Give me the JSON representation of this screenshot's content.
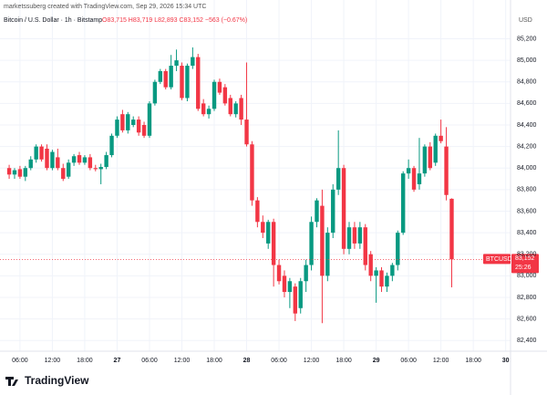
{
  "chart_data": {
    "type": "candlestick",
    "credit": "marketssuberg created with TradingView.com, Sep 29, 2026 15:34 UTC",
    "symbol": "Bitcoin / U.S. Dollar · 1h · Bitstamp",
    "ohlc": "O83,715 H83,719 L82,893 C83,152 −563 (−0.67%)",
    "currency": "USD",
    "brand": "TradingView",
    "last_label": {
      "name": "BTCUSD",
      "value_label": "83,152",
      "countdown": "25:26"
    },
    "up_color": "#089981",
    "down_color": "#f23645",
    "x": [
      4,
      5,
      6,
      7,
      8,
      9,
      10,
      11,
      12,
      13,
      14,
      15,
      16,
      17,
      18,
      19,
      20,
      21,
      22,
      23,
      24,
      25,
      26,
      27,
      28,
      29,
      30,
      31,
      32,
      33,
      34,
      35,
      36,
      37,
      38,
      39,
      40,
      41,
      42,
      43,
      44,
      45,
      46,
      47,
      48,
      49,
      50,
      51,
      52,
      53,
      54,
      55,
      56,
      57,
      58,
      59,
      60,
      61,
      62,
      63,
      64,
      65,
      66,
      67,
      68,
      69,
      70,
      71,
      72,
      73,
      74,
      75,
      76,
      77,
      78,
      79,
      80,
      81,
      82,
      83,
      84,
      85,
      86
    ],
    "open": [
      84000,
      83940,
      83990,
      83920,
      84000,
      84080,
      84200,
      84180,
      84000,
      84100,
      84000,
      83920,
      84050,
      84120,
      84050,
      84100,
      84000,
      83990,
      84010,
      84120,
      84300,
      84500,
      84350,
      84400,
      84450,
      84400,
      84300,
      84600,
      84800,
      84900,
      84750,
      84950,
      84950,
      84650,
      84950,
      85030,
      84600,
      84500,
      84550,
      84800,
      84750,
      84650,
      84500,
      84650,
      84450,
      84220,
      83700,
      83500,
      83300,
      83500,
      83100,
      83000,
      82850,
      82900,
      82700,
      82950,
      83100,
      83500,
      83650,
      83000,
      83400,
      83800,
      84000,
      83250,
      83450,
      83300,
      83450,
      83200,
      83000,
      83050,
      82900,
      83000,
      83100,
      83400,
      83950,
      84000,
      83850,
      83950,
      84200,
      84050,
      84300,
      84200,
      83715
    ],
    "high": [
      84030,
      84000,
      84020,
      84020,
      84110,
      84220,
      84220,
      84220,
      84170,
      84180,
      84040,
      84080,
      84130,
      84150,
      84120,
      84130,
      84030,
      84040,
      84150,
      84320,
      84480,
      84540,
      84520,
      84480,
      84480,
      84430,
      84620,
      84820,
      84920,
      84920,
      85050,
      85100,
      84980,
      84970,
      85120,
      85060,
      84640,
      84580,
      84820,
      84830,
      84780,
      84680,
      84620,
      84680,
      84980,
      84250,
      83730,
      83560,
      83520,
      83530,
      83150,
      83050,
      82980,
      82930,
      82980,
      83150,
      83550,
      83720,
      83800,
      83450,
      83850,
      84350,
      84030,
      83500,
      83500,
      83500,
      83480,
      83230,
      83080,
      83080,
      83030,
      83120,
      83420,
      83970,
      84080,
      84020,
      84280,
      84220,
      84240,
      84320,
      84450,
      84380,
      83719
    ],
    "low": [
      83900,
      83900,
      83900,
      83880,
      83980,
      84050,
      84060,
      83980,
      83980,
      83980,
      83880,
      83900,
      84020,
      84030,
      84030,
      83980,
      83970,
      83850,
      83990,
      84100,
      84280,
      84330,
      84320,
      84380,
      84300,
      84280,
      84280,
      84580,
      84780,
      84730,
      84730,
      84900,
      84630,
      84620,
      84920,
      84530,
      84480,
      84460,
      84530,
      84680,
      84580,
      84480,
      84470,
      84400,
      84200,
      83650,
      83450,
      83350,
      83250,
      82900,
      82920,
      82800,
      82700,
      82580,
      82650,
      82850,
      83050,
      83450,
      82560,
      82950,
      83350,
      83750,
      83200,
      83200,
      83250,
      83250,
      83050,
      82950,
      82750,
      82850,
      82850,
      82950,
      83050,
      83380,
      83900,
      83780,
      83800,
      83920,
      83980,
      84020,
      84230,
      83700,
      82893
    ],
    "close": [
      83940,
      83980,
      83920,
      84000,
      84080,
      84200,
      84080,
      84000,
      84150,
      84000,
      83900,
      84050,
      84110,
      84050,
      84100,
      84000,
      83990,
      84010,
      84120,
      84300,
      84450,
      84350,
      84500,
      84450,
      84330,
      84300,
      84600,
      84800,
      84900,
      84750,
      84950,
      85000,
      84650,
      84950,
      85030,
      84550,
      84500,
      84550,
      84800,
      84700,
      84600,
      84500,
      84600,
      84450,
      84220,
      83700,
      83500,
      83400,
      83500,
      83100,
      82950,
      82850,
      82950,
      82650,
      82950,
      83100,
      83500,
      83700,
      83000,
      83400,
      83800,
      84000,
      83250,
      83450,
      83300,
      83450,
      83100,
      83000,
      83050,
      82900,
      83000,
      83100,
      83400,
      83950,
      84000,
      83800,
      83950,
      84200,
      84000,
      84300,
      84250,
      83750,
      83152
    ],
    "xlim": [
      2.3,
      96.9
    ],
    "xticks": [
      {
        "value": 6,
        "label": "06:00"
      },
      {
        "value": 12,
        "label": "12:00"
      },
      {
        "value": 18,
        "label": "18:00"
      },
      {
        "value": 24,
        "label": "27"
      },
      {
        "value": 30,
        "label": "06:00"
      },
      {
        "value": 36,
        "label": "12:00"
      },
      {
        "value": 42,
        "label": "18:00"
      },
      {
        "value": 48,
        "label": "28"
      },
      {
        "value": 54,
        "label": "06:00"
      },
      {
        "value": 60,
        "label": "12:00"
      },
      {
        "value": 66,
        "label": "18:00"
      },
      {
        "value": 72,
        "label": "29"
      },
      {
        "value": 78,
        "label": "06:00"
      },
      {
        "value": 84,
        "label": "12:00"
      },
      {
        "value": 90,
        "label": "18:00"
      },
      {
        "value": 96,
        "label": "30"
      }
    ],
    "ylim": [
      82300,
      85560
    ],
    "yticks": [
      {
        "value": 82400,
        "label": "82,400"
      },
      {
        "value": 82600,
        "label": "82,600"
      },
      {
        "value": 82800,
        "label": "82,800"
      },
      {
        "value": 83000,
        "label": "83,000"
      },
      {
        "value": 83200,
        "label": "83,200"
      },
      {
        "value": 83400,
        "label": "83,400"
      },
      {
        "value": 83600,
        "label": "83,600"
      },
      {
        "value": 83800,
        "label": "83,800"
      },
      {
        "value": 84000,
        "label": "84,000"
      },
      {
        "value": 84200,
        "label": "84,200"
      },
      {
        "value": 84400,
        "label": "84,400"
      },
      {
        "value": 84600,
        "label": "84,600"
      },
      {
        "value": 84800,
        "label": "84,800"
      },
      {
        "value": 85000,
        "label": "85,000"
      },
      {
        "value": 85200,
        "label": "85,200"
      }
    ],
    "grid": true
  }
}
